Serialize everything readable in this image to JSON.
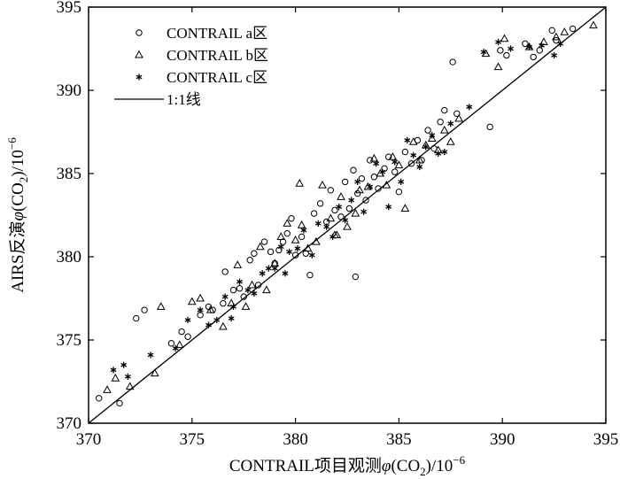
{
  "chart_data": {
    "type": "scatter",
    "title": "",
    "xlabel": {
      "prefix": "CONTRAIL项目观测",
      "symbol": "φ",
      "paren_open": "(CO",
      "subscript": "2",
      "paren_close": ")",
      "slash": "/10",
      "exponent": "−6"
    },
    "ylabel": {
      "prefix": "AIRS反演",
      "symbol": "φ",
      "paren_open": "(CO",
      "subscript": "2",
      "paren_close": ")",
      "slash": "/10",
      "exponent": "−6"
    },
    "xlim": [
      370,
      395
    ],
    "ylim": [
      370,
      395
    ],
    "xticks": [
      "370",
      "375",
      "380",
      "385",
      "390",
      "395"
    ],
    "yticks": [
      "370",
      "375",
      "380",
      "385",
      "390",
      "395"
    ],
    "grid": false,
    "legend_position": "top-left",
    "legend": [
      {
        "label": "CONTRAIL a区",
        "marker": "circle"
      },
      {
        "label": "CONTRAIL b区",
        "marker": "triangle"
      },
      {
        "label": "CONTRAIL c区",
        "marker": "asterisk"
      },
      {
        "label": "1:1线",
        "marker": "line"
      }
    ],
    "reference_line": {
      "name": "1:1线",
      "from": [
        370,
        370
      ],
      "to": [
        395,
        395
      ]
    },
    "series": [
      {
        "name": "CONTRAIL a区",
        "marker": "circle",
        "points": [
          [
            370.5,
            371.5
          ],
          [
            371.5,
            371.2
          ],
          [
            372.3,
            376.3
          ],
          [
            372.7,
            376.8
          ],
          [
            374.0,
            374.8
          ],
          [
            374.5,
            375.5
          ],
          [
            374.8,
            375.2
          ],
          [
            375.4,
            376.5
          ],
          [
            375.8,
            377.0
          ],
          [
            376.0,
            376.8
          ],
          [
            376.5,
            377.2
          ],
          [
            376.6,
            379.1
          ],
          [
            377.0,
            378.0
          ],
          [
            377.3,
            378.1
          ],
          [
            377.5,
            377.6
          ],
          [
            377.8,
            379.8
          ],
          [
            378.0,
            380.2
          ],
          [
            378.2,
            378.3
          ],
          [
            378.5,
            380.9
          ],
          [
            378.8,
            380.3
          ],
          [
            379.0,
            379.6
          ],
          [
            379.2,
            380.4
          ],
          [
            379.4,
            380.9
          ],
          [
            379.6,
            381.4
          ],
          [
            379.8,
            382.3
          ],
          [
            380.0,
            380.1
          ],
          [
            380.3,
            381.2
          ],
          [
            380.5,
            380.2
          ],
          [
            380.7,
            378.9
          ],
          [
            380.9,
            382.6
          ],
          [
            381.2,
            383.2
          ],
          [
            381.5,
            382.1
          ],
          [
            381.7,
            384.0
          ],
          [
            381.9,
            382.8
          ],
          [
            382.2,
            382.4
          ],
          [
            382.4,
            384.5
          ],
          [
            382.6,
            382.9
          ],
          [
            382.8,
            385.2
          ],
          [
            383.0,
            383.8
          ],
          [
            383.2,
            384.7
          ],
          [
            383.4,
            383.4
          ],
          [
            383.6,
            385.8
          ],
          [
            383.8,
            384.8
          ],
          [
            384.0,
            384.1
          ],
          [
            384.3,
            385.3
          ],
          [
            384.5,
            386.0
          ],
          [
            384.8,
            385.1
          ],
          [
            385.0,
            383.9
          ],
          [
            385.3,
            386.3
          ],
          [
            385.6,
            385.6
          ],
          [
            385.9,
            387.0
          ],
          [
            386.1,
            385.8
          ],
          [
            386.4,
            387.6
          ],
          [
            386.7,
            386.5
          ],
          [
            387.0,
            388.1
          ],
          [
            387.2,
            388.8
          ],
          [
            387.6,
            391.7
          ],
          [
            387.8,
            388.6
          ],
          [
            389.4,
            387.8
          ],
          [
            389.9,
            392.4
          ],
          [
            390.2,
            392.1
          ],
          [
            391.1,
            392.8
          ],
          [
            391.5,
            392.0
          ],
          [
            391.8,
            392.4
          ],
          [
            392.4,
            393.6
          ],
          [
            392.6,
            393.0
          ],
          [
            393.4,
            393.7
          ],
          [
            382.9,
            378.8
          ]
        ]
      },
      {
        "name": "CONTRAIL b区",
        "marker": "triangle",
        "points": [
          [
            370.9,
            372.0
          ],
          [
            371.3,
            372.7
          ],
          [
            372.0,
            372.2
          ],
          [
            373.2,
            373.0
          ],
          [
            373.5,
            377.0
          ],
          [
            374.4,
            374.7
          ],
          [
            375.0,
            377.3
          ],
          [
            375.4,
            377.5
          ],
          [
            375.9,
            376.8
          ],
          [
            376.5,
            375.8
          ],
          [
            376.9,
            377.2
          ],
          [
            377.2,
            379.5
          ],
          [
            377.6,
            377.0
          ],
          [
            377.9,
            378.3
          ],
          [
            378.3,
            380.6
          ],
          [
            378.6,
            378.0
          ],
          [
            379.0,
            379.6
          ],
          [
            379.3,
            381.2
          ],
          [
            379.6,
            382.0
          ],
          [
            380.0,
            381.0
          ],
          [
            380.3,
            381.9
          ],
          [
            380.6,
            380.5
          ],
          [
            381.0,
            380.9
          ],
          [
            381.3,
            384.3
          ],
          [
            381.7,
            382.3
          ],
          [
            382.0,
            381.3
          ],
          [
            382.2,
            383.6
          ],
          [
            382.5,
            381.8
          ],
          [
            382.9,
            382.6
          ],
          [
            383.1,
            384.0
          ],
          [
            383.5,
            384.2
          ],
          [
            383.8,
            385.9
          ],
          [
            384.1,
            385.0
          ],
          [
            384.4,
            384.3
          ],
          [
            384.7,
            386.0
          ],
          [
            385.0,
            385.5
          ],
          [
            385.3,
            382.9
          ],
          [
            385.7,
            386.9
          ],
          [
            386.0,
            385.8
          ],
          [
            386.3,
            386.7
          ],
          [
            386.6,
            387.1
          ],
          [
            386.9,
            386.4
          ],
          [
            387.2,
            387.6
          ],
          [
            387.5,
            386.9
          ],
          [
            387.9,
            388.3
          ],
          [
            389.2,
            392.2
          ],
          [
            389.8,
            391.4
          ],
          [
            390.1,
            393.1
          ],
          [
            391.3,
            392.6
          ],
          [
            392.0,
            392.9
          ],
          [
            392.6,
            393.2
          ],
          [
            393.0,
            393.5
          ],
          [
            394.4,
            393.9
          ],
          [
            381.9,
            381.3
          ],
          [
            380.2,
            384.4
          ]
        ]
      },
      {
        "name": "CONTRAIL c区",
        "marker": "asterisk",
        "points": [
          [
            371.2,
            373.2
          ],
          [
            371.7,
            373.5
          ],
          [
            371.9,
            372.8
          ],
          [
            373.0,
            374.1
          ],
          [
            374.2,
            374.5
          ],
          [
            374.8,
            376.2
          ],
          [
            375.4,
            376.8
          ],
          [
            375.8,
            375.9
          ],
          [
            376.2,
            376.2
          ],
          [
            376.6,
            377.6
          ],
          [
            377.0,
            377.0
          ],
          [
            377.3,
            378.5
          ],
          [
            377.7,
            378.0
          ],
          [
            378.0,
            377.8
          ],
          [
            378.4,
            379.0
          ],
          [
            378.7,
            379.3
          ],
          [
            379.0,
            379.3
          ],
          [
            379.3,
            380.6
          ],
          [
            379.7,
            380.3
          ],
          [
            380.1,
            380.5
          ],
          [
            380.4,
            381.6
          ],
          [
            380.8,
            380.1
          ],
          [
            381.1,
            382.0
          ],
          [
            381.5,
            381.8
          ],
          [
            381.8,
            381.2
          ],
          [
            382.1,
            383.0
          ],
          [
            382.4,
            382.2
          ],
          [
            382.7,
            383.4
          ],
          [
            383.0,
            384.5
          ],
          [
            383.3,
            382.7
          ],
          [
            383.6,
            384.2
          ],
          [
            383.9,
            385.6
          ],
          [
            384.2,
            385.1
          ],
          [
            384.5,
            383.0
          ],
          [
            384.8,
            385.7
          ],
          [
            385.1,
            384.5
          ],
          [
            385.4,
            387.0
          ],
          [
            385.7,
            386.1
          ],
          [
            386.0,
            385.4
          ],
          [
            386.3,
            386.6
          ],
          [
            386.6,
            387.3
          ],
          [
            386.9,
            386.2
          ],
          [
            387.2,
            386.3
          ],
          [
            387.5,
            388.0
          ],
          [
            389.1,
            392.3
          ],
          [
            389.8,
            392.9
          ],
          [
            390.4,
            392.5
          ],
          [
            391.3,
            392.6
          ],
          [
            391.9,
            392.7
          ],
          [
            392.5,
            392.1
          ],
          [
            392.8,
            392.8
          ],
          [
            388.4,
            389.0
          ],
          [
            376.9,
            376.3
          ],
          [
            379.5,
            379.0
          ]
        ]
      }
    ]
  }
}
